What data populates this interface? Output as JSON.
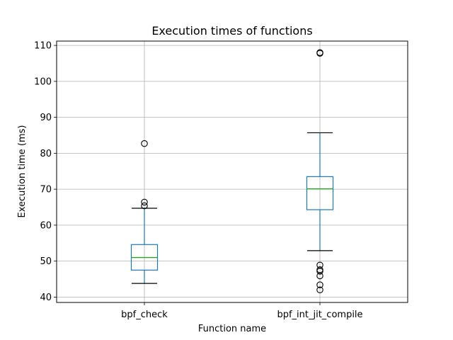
{
  "chart_data": {
    "type": "box",
    "title": "Execution times of functions",
    "xlabel": "Function name",
    "ylabel": "Execution time (ms)",
    "ylim": [
      38.5,
      111.2
    ],
    "yticks": [
      40,
      50,
      60,
      70,
      80,
      90,
      100,
      110
    ],
    "grid": true,
    "categories": [
      "bpf_check",
      "bpf_int_jit_compile"
    ],
    "boxes": [
      {
        "name": "bpf_check",
        "whisker_low": 43.8,
        "q1": 47.5,
        "median": 51.0,
        "q3": 54.6,
        "whisker_high": 64.7,
        "outliers": [
          65.4,
          66.4,
          82.7
        ]
      },
      {
        "name": "bpf_int_jit_compile",
        "whisker_low": 52.9,
        "q1": 64.3,
        "median": 70.1,
        "q3": 73.5,
        "whisker_high": 85.7,
        "outliers": [
          42.0,
          43.4,
          45.9,
          47.2,
          47.6,
          48.9,
          107.8,
          108.0
        ]
      }
    ],
    "colors": {
      "box": "#1f77b4",
      "median": "#2ca02c",
      "grid": "#b0b0b0"
    }
  }
}
